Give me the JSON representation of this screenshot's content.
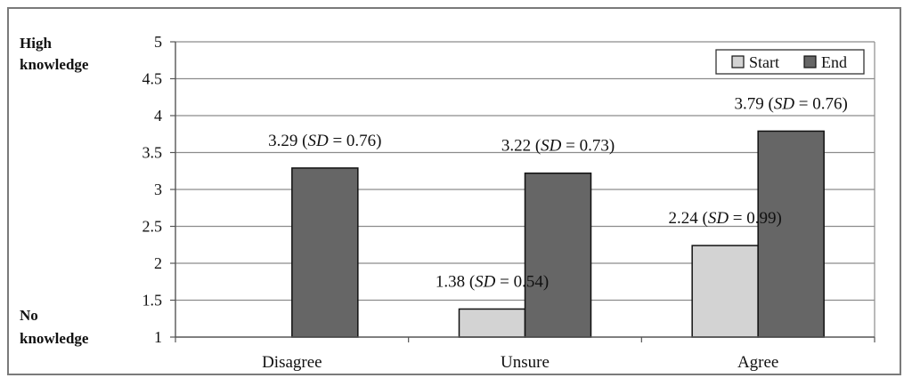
{
  "chart_data": {
    "type": "bar",
    "categories": [
      "Disagree",
      "Unsure",
      "Agree"
    ],
    "series": [
      {
        "name": "Start",
        "values": [
          null,
          1.38,
          2.24
        ],
        "color": "#d3d3d3"
      },
      {
        "name": "End",
        "values": [
          3.29,
          3.22,
          3.79
        ],
        "color": "#666666"
      }
    ],
    "ylim": [
      1,
      5
    ],
    "yticks": [
      "1",
      "1.5",
      "2",
      "2.5",
      "3",
      "3.5",
      "4",
      "4.5",
      "5"
    ],
    "y_top_label": [
      "High",
      "knowledge"
    ],
    "y_bottom_label": [
      "No",
      "knowledge"
    ],
    "annotations": [
      {
        "series": 1,
        "category": 0,
        "prefix": "3.29 (",
        "sd": "SD",
        "suffix": " = 0.76)"
      },
      {
        "series": 0,
        "category": 1,
        "prefix": "1.38 (",
        "sd": "SD",
        "suffix": " = 0.54)"
      },
      {
        "series": 1,
        "category": 1,
        "prefix": "3.22 (",
        "sd": "SD",
        "suffix": " = 0.73)"
      },
      {
        "series": 0,
        "category": 2,
        "prefix": "2.24 (",
        "sd": "SD",
        "suffix": " = 0.99)"
      },
      {
        "series": 1,
        "category": 2,
        "prefix": "3.79 (",
        "sd": "SD",
        "suffix": " = 0.76)"
      }
    ],
    "grid": true,
    "legend_position": "top-right"
  }
}
